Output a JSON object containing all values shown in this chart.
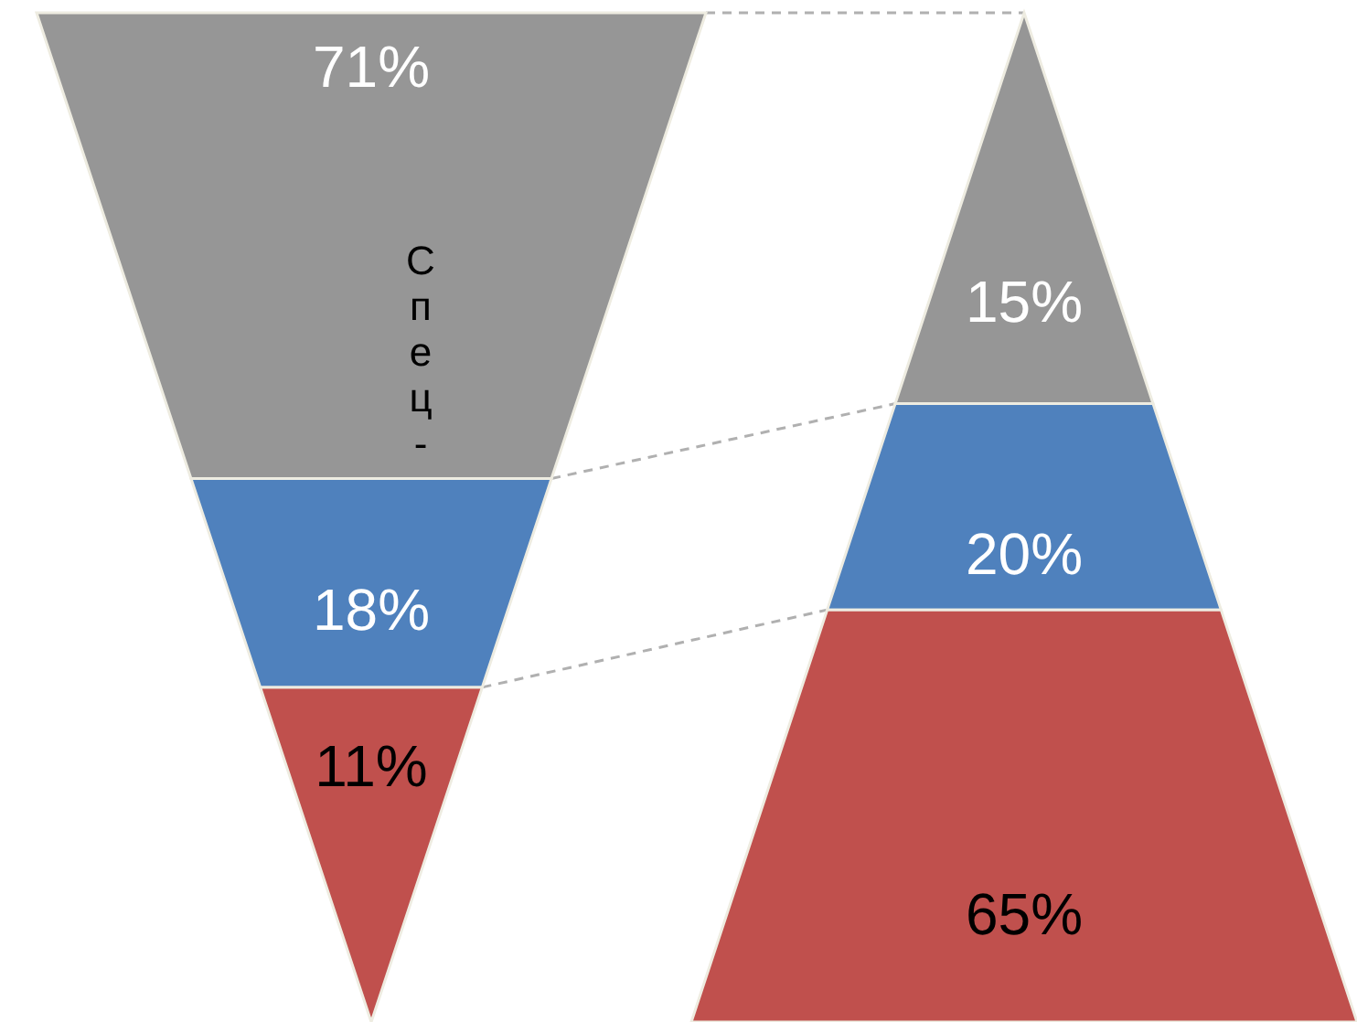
{
  "chart_data": [
    {
      "type": "other",
      "categories": [
        null,
        null,
        null
      ],
      "values": [
        71,
        18,
        11
      ],
      "value_labels": [
        "71%",
        "18%",
        "11%"
      ],
      "colors": [
        "#969696",
        "#4f81bd",
        "#c0504d"
      ],
      "annotations": [
        "Спец-"
      ]
    },
    {
      "type": "other",
      "categories": [
        null,
        null,
        null
      ],
      "values": [
        15,
        20,
        65
      ],
      "value_labels": [
        "15%",
        "20%",
        "65%"
      ],
      "colors": [
        "#969696",
        "#4f81bd",
        "#c0504d"
      ]
    }
  ]
}
